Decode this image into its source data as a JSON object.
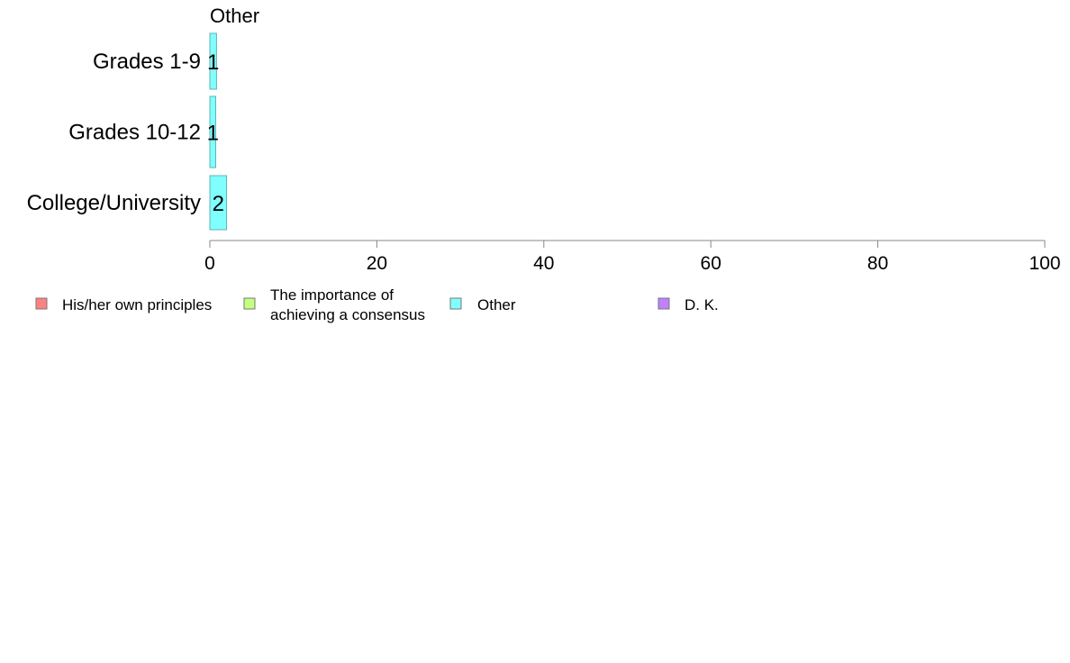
{
  "chart_data": {
    "type": "bar",
    "orientation": "horizontal",
    "title": "Other",
    "categories": [
      "Grades 1-9",
      "Grades 10-12",
      "College/University"
    ],
    "series": [
      {
        "name": "Other",
        "values": [
          0.8,
          0.7,
          2.0
        ],
        "labels": [
          "1",
          "1",
          "2"
        ],
        "color": "#80ffff"
      }
    ],
    "xlim": [
      0,
      100
    ],
    "xticks": [
      0,
      20,
      40,
      60,
      80,
      100
    ],
    "tick_labels": [
      "0",
      "20",
      "40",
      "60",
      "80",
      "100"
    ],
    "grid": false,
    "legend": {
      "placement": "bottom",
      "entries": [
        {
          "lines": [
            "His/her own principles"
          ],
          "color": "#ff8080"
        },
        {
          "lines": [
            "The importance of",
            "achieving a consensus"
          ],
          "color": "#c4ff80"
        },
        {
          "lines": [
            "Other"
          ],
          "color": "#80ffff"
        },
        {
          "lines": [
            "D. K."
          ],
          "color": "#c080ff"
        }
      ]
    }
  }
}
